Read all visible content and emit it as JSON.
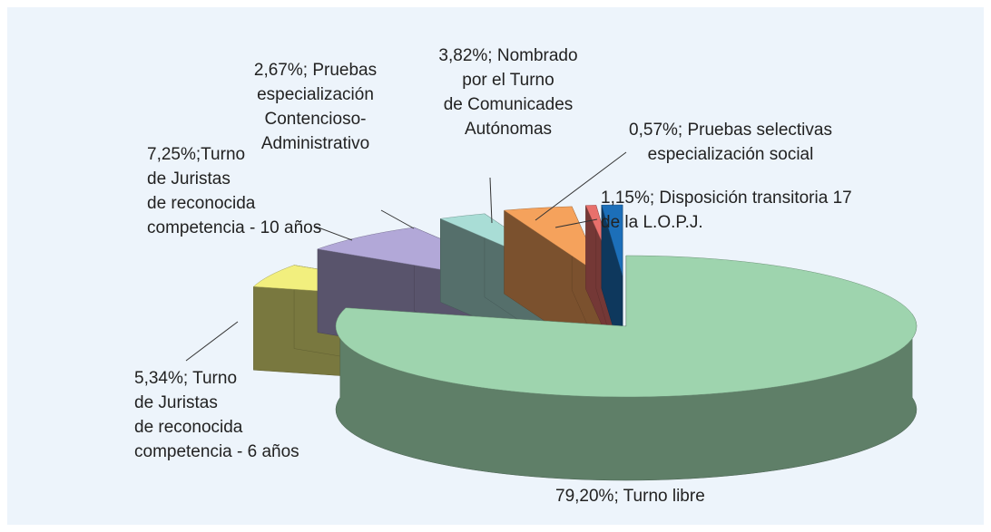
{
  "chart_data": {
    "type": "pie3d",
    "values": [
      79.2,
      5.34,
      7.25,
      2.67,
      3.82,
      0.57,
      1.15
    ],
    "value_labels": [
      "79,20%; Turno libre",
      "5,34%; Turno\nde Juristas\nde reconocida\ncompetencia - 6 años",
      "7,25%;Turno\nde Juristas\nde reconocida\ncompetencia - 10 años",
      "2,67%; Pruebas\nespecialización\nContencioso-\nAdministrativo",
      "3,82%; Nombrado\npor el Turno\nde Comunicades\nAutónomas",
      "0,57%; Pruebas selectivas\nespecialización social",
      "1,15%; Disposición transitoria 17\nde la L.O.P.J."
    ],
    "colors": [
      "#9ed4ae",
      "#f2ef7e",
      "#b2a8d8",
      "#a9ddd6",
      "#f5a25c",
      "#e8706c",
      "#1c6fb9"
    ]
  }
}
